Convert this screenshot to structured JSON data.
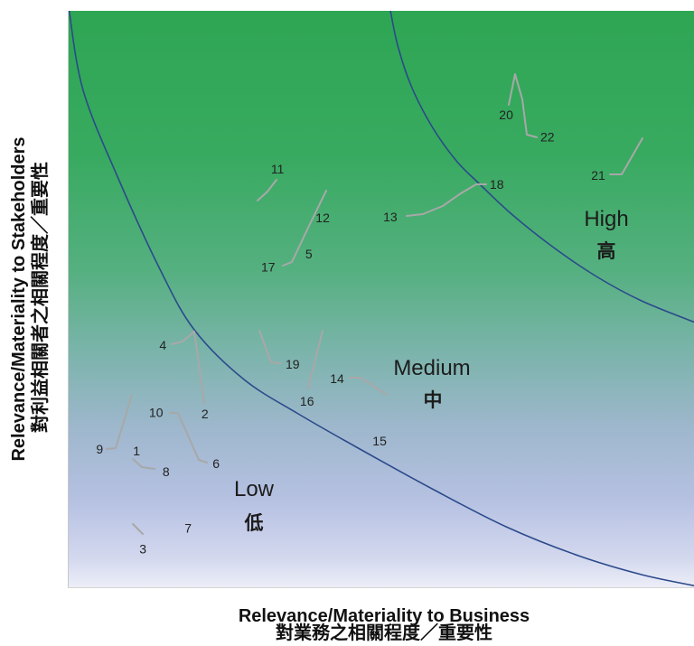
{
  "chart_data": {
    "type": "scatter",
    "xlabel": "Relevance/Materiality to Business",
    "xlabel_zh": "對業務之相關程度／重要性",
    "ylabel": "Relevance/Materiality to Stakeholders",
    "ylabel_zh": "對利益相關者之相關程度／重要性",
    "xlim": [
      0,
      10
    ],
    "ylim": [
      0,
      10
    ],
    "grid": false,
    "ticks": false,
    "legend": false,
    "regions": [
      {
        "label": "Low",
        "label_zh": "低"
      },
      {
        "label": "Medium",
        "label_zh": "中"
      },
      {
        "label": "High",
        "label_zh": "高"
      }
    ],
    "points": [
      {
        "label": "1",
        "x": 1.1,
        "y": 2.37
      },
      {
        "label": "2",
        "x": 2.19,
        "y": 3.01
      },
      {
        "label": "3",
        "x": 1.2,
        "y": 0.67
      },
      {
        "label": "4",
        "x": 1.52,
        "y": 4.2
      },
      {
        "label": "5",
        "x": 3.85,
        "y": 5.78
      },
      {
        "label": "6",
        "x": 2.37,
        "y": 2.15
      },
      {
        "label": "7",
        "x": 1.92,
        "y": 1.03
      },
      {
        "label": "8",
        "x": 1.57,
        "y": 2.01
      },
      {
        "label": "9",
        "x": 0.51,
        "y": 2.4
      },
      {
        "label": "10",
        "x": 1.41,
        "y": 3.03
      },
      {
        "label": "11",
        "x": 3.35,
        "y": 7.26
      },
      {
        "label": "12",
        "x": 4.07,
        "y": 6.41
      },
      {
        "label": "13",
        "x": 5.15,
        "y": 6.43
      },
      {
        "label": "14",
        "x": 4.3,
        "y": 3.62
      },
      {
        "label": "15",
        "x": 4.98,
        "y": 2.54
      },
      {
        "label": "16",
        "x": 3.82,
        "y": 3.23
      },
      {
        "label": "17",
        "x": 3.2,
        "y": 5.56
      },
      {
        "label": "18",
        "x": 6.85,
        "y": 6.99
      },
      {
        "label": "19",
        "x": 3.59,
        "y": 3.87
      },
      {
        "label": "20",
        "x": 7.0,
        "y": 8.2
      },
      {
        "label": "21",
        "x": 8.47,
        "y": 7.15
      },
      {
        "label": "22",
        "x": 7.66,
        "y": 7.81
      }
    ]
  },
  "colors": {
    "gradient": [
      "#2ea653",
      "#38aa60",
      "#55b080",
      "#7db4ad",
      "#9db7cc",
      "#b6c1e2",
      "#d3d8ee",
      "#eceef7"
    ],
    "boundary": "#2b4a8b",
    "leader": "#a8a8a8",
    "label_text": "#222222"
  }
}
